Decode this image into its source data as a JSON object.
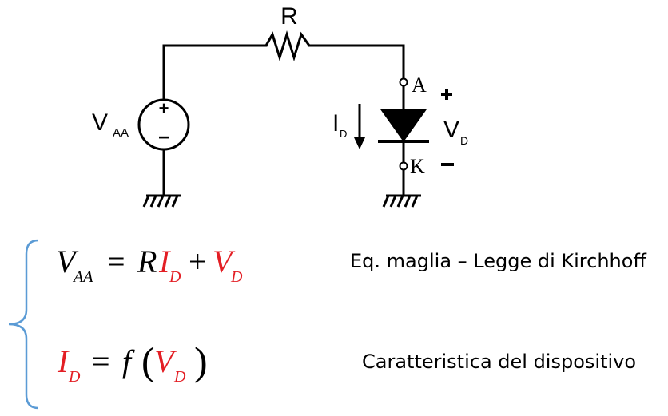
{
  "circuit": {
    "resistor_label": "R",
    "source_label_main": "V",
    "source_label_sub": "AA",
    "source_plus": "+",
    "source_minus": "−",
    "anode_label": "A",
    "cathode_label": "K",
    "current_label_main": "I",
    "current_label_sub": "D",
    "voltage_label_main": "V",
    "voltage_label_sub": "D",
    "voltage_plus": "+",
    "voltage_minus": "−"
  },
  "equations": {
    "eq1": {
      "lhs_main": "V",
      "lhs_sub": "AA",
      "equals": "=",
      "r": "R",
      "id_main": "I",
      "id_sub": "D",
      "plus": "+",
      "vd_main": "V",
      "vd_sub": "D",
      "description": "Eq. maglia – Legge di Kirchhoff"
    },
    "eq2": {
      "id_main": "I",
      "id_sub": "D",
      "equals": "=",
      "f": "f",
      "open_paren": "(",
      "vd_main": "V",
      "vd_sub": "D",
      "close_paren": ")",
      "description": "Caratteristica del dispositivo"
    }
  },
  "colors": {
    "accent_red": "#e31e24",
    "brace_blue": "#5b9bd5",
    "ink": "#000000"
  }
}
